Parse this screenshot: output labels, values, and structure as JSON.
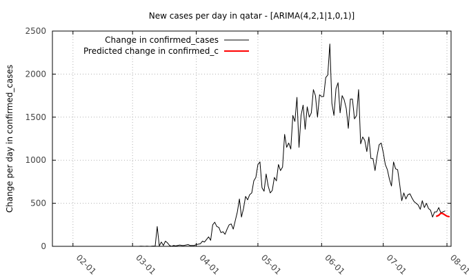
{
  "chart_data": {
    "type": "line",
    "title": "New cases per day in qatar -  [ARIMA(4,2,1|1,0,1)]",
    "xlabel": "",
    "ylabel": "Change per day in confirmed_cases",
    "ylim": [
      0,
      2500
    ],
    "xlim": [
      "2020-01-22",
      "2020-08-03"
    ],
    "y_ticks": [
      "0",
      "500",
      "1000",
      "1500",
      "2000",
      "2500"
    ],
    "x_ticks": [
      {
        "label": "02-01",
        "date": "2020-02-01"
      },
      {
        "label": "03-01",
        "date": "2020-03-01"
      },
      {
        "label": "04-01",
        "date": "2020-04-01"
      },
      {
        "label": "05-01",
        "date": "2020-05-01"
      },
      {
        "label": "06-01",
        "date": "2020-06-01"
      },
      {
        "label": "07-01",
        "date": "2020-07-01"
      },
      {
        "label": "08-01",
        "date": "2020-08-01"
      }
    ],
    "grid": true,
    "legend_position": "top-left",
    "series": [
      {
        "name": "Change in confirmed_cases",
        "color": "#000000",
        "start_date": "2020-01-22",
        "values": [
          0,
          0,
          0,
          0,
          0,
          0,
          0,
          0,
          0,
          0,
          0,
          0,
          0,
          0,
          0,
          0,
          0,
          0,
          0,
          0,
          0,
          0,
          0,
          0,
          0,
          0,
          0,
          0,
          0,
          0,
          0,
          0,
          0,
          0,
          0,
          0,
          0,
          0,
          0,
          0,
          0,
          0,
          0,
          2,
          1,
          0,
          2,
          0,
          1,
          3,
          2,
          230,
          5,
          50,
          10,
          60,
          40,
          10,
          0,
          10,
          5,
          10,
          15,
          10,
          10,
          15,
          20,
          10,
          10,
          10,
          20,
          25,
          30,
          60,
          50,
          80,
          110,
          70,
          250,
          280,
          230,
          220,
          160,
          170,
          140,
          200,
          250,
          260,
          200,
          300,
          400,
          550,
          340,
          440,
          580,
          540,
          600,
          620,
          760,
          800,
          950,
          980,
          680,
          640,
          840,
          700,
          620,
          650,
          800,
          760,
          950,
          880,
          920,
          1300,
          1150,
          1200,
          1130,
          1520,
          1450,
          1730,
          1150,
          1520,
          1640,
          1360,
          1620,
          1500,
          1550,
          1820,
          1750,
          1500,
          1760,
          1740,
          1740,
          1960,
          1990,
          2350,
          1660,
          1520,
          1830,
          1900,
          1550,
          1750,
          1700,
          1600,
          1370,
          1710,
          1710,
          1480,
          1520,
          1820,
          1190,
          1270,
          1230,
          1100,
          1270,
          1020,
          1020,
          880,
          1050,
          1180,
          1200,
          1090,
          950,
          890,
          780,
          700,
          980,
          900,
          890,
          720,
          530,
          620,
          550,
          600,
          610,
          560,
          520,
          500,
          480,
          430,
          530,
          450,
          500,
          440,
          420,
          340,
          400,
          400,
          450,
          390,
          400,
          410
        ]
      },
      {
        "name": "Predicted change in confirmed_c",
        "color": "#ff0000",
        "start_date": "2020-07-27",
        "values": [
          350,
          360,
          385,
          380,
          365,
          350,
          345
        ]
      }
    ]
  }
}
